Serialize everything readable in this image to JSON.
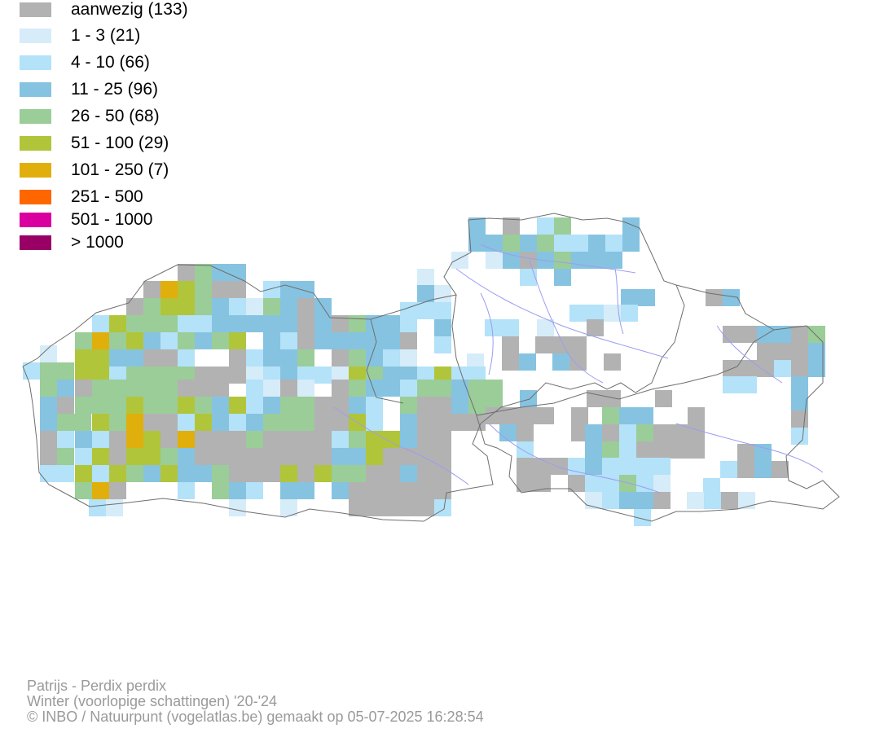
{
  "legend": [
    {
      "label": "aanwezig (133)",
      "color": "#b2b2b2"
    },
    {
      "label": "1 - 3 (21)",
      "color": "#d6ecf8"
    },
    {
      "label": "4 - 10 (66)",
      "color": "#b3e2f9"
    },
    {
      "label": "11 - 25 (96)",
      "color": "#86c3e1"
    },
    {
      "label": "26 - 50 (68)",
      "color": "#9bcd98"
    },
    {
      "label": "51 - 100 (29)",
      "color": "#b1c53a"
    },
    {
      "label": "101 - 250 (7)",
      "color": "#e0af0c"
    },
    {
      "label": "251 - 500",
      "color": "#ff6600"
    },
    {
      "label": "501 - 1000",
      "color": "#d9009f"
    },
    {
      "label": "> 1000",
      "color": "#990066"
    }
  ],
  "caption": {
    "species": "Patrijs - Perdix perdix",
    "season": "Winter (voorlopige schattingen) '20-'24",
    "credit": "© INBO / Natuurpunt (vogelatlas.be) gemaakt op 05-07-2025 16:28:54"
  },
  "map": {
    "boundary_color": "#6e6e6e",
    "river_color": "#9c9cf2"
  }
}
